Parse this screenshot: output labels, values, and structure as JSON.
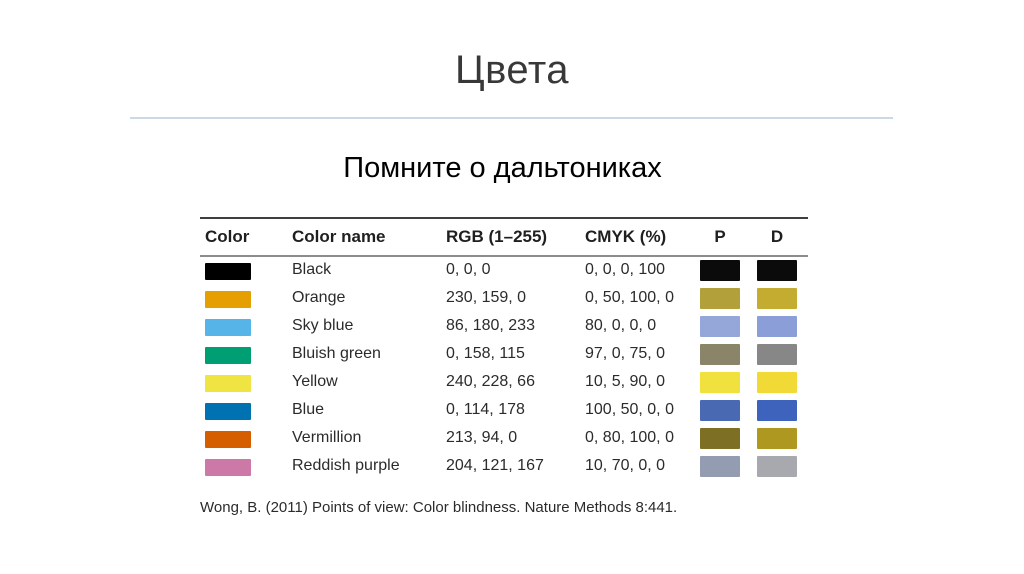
{
  "slide": {
    "title": "Цвета",
    "subtitle": "Помните о дальтониках",
    "citation": "Wong, B. (2011) Points of view: Color blindness. Nature Methods 8:441.",
    "divider_color": "#ccd8e3"
  },
  "table": {
    "headers": {
      "color": "Color",
      "color_name": "Color name",
      "rgb": "RGB (1–255)",
      "cmyk": "CMYK (%)",
      "p": "P",
      "d": "D"
    },
    "rows": [
      {
        "name": "Black",
        "rgb": "0, 0, 0",
        "cmyk": "0, 0, 0, 100",
        "hex": "#000000",
        "p_hex": "#0b0b0b",
        "d_hex": "#0b0b0b"
      },
      {
        "name": "Orange",
        "rgb": "230, 159, 0",
        "cmyk": "0, 50, 100, 0",
        "hex": "#e69f00",
        "p_hex": "#b2a03a",
        "d_hex": "#c3ac2f"
      },
      {
        "name": "Sky blue",
        "rgb": "86, 180, 233",
        "cmyk": "80, 0, 0, 0",
        "hex": "#56b4e9",
        "p_hex": "#95a7d8",
        "d_hex": "#8b9ed8"
      },
      {
        "name": "Bluish green",
        "rgb": "0, 158, 115",
        "cmyk": "97, 0, 75, 0",
        "hex": "#009e73",
        "p_hex": "#8a8468",
        "d_hex": "#878787"
      },
      {
        "name": "Yellow",
        "rgb": "240, 228, 66",
        "cmyk": "10, 5, 90, 0",
        "hex": "#f0e442",
        "p_hex": "#f1e13e",
        "d_hex": "#f2da36"
      },
      {
        "name": "Blue",
        "rgb": "0, 114, 178",
        "cmyk": "100, 50, 0, 0",
        "hex": "#0072b2",
        "p_hex": "#4a69b3",
        "d_hex": "#3d63bd"
      },
      {
        "name": "Vermillion",
        "rgb": "213, 94, 0",
        "cmyk": "0, 80, 100, 0",
        "hex": "#d55e00",
        "p_hex": "#7d6f23",
        "d_hex": "#ae981f"
      },
      {
        "name": "Reddish purple",
        "rgb": "204, 121, 167",
        "cmyk": "10, 70, 0, 0",
        "hex": "#cc79a7",
        "p_hex": "#949cb2",
        "d_hex": "#a7a9ae"
      }
    ]
  }
}
